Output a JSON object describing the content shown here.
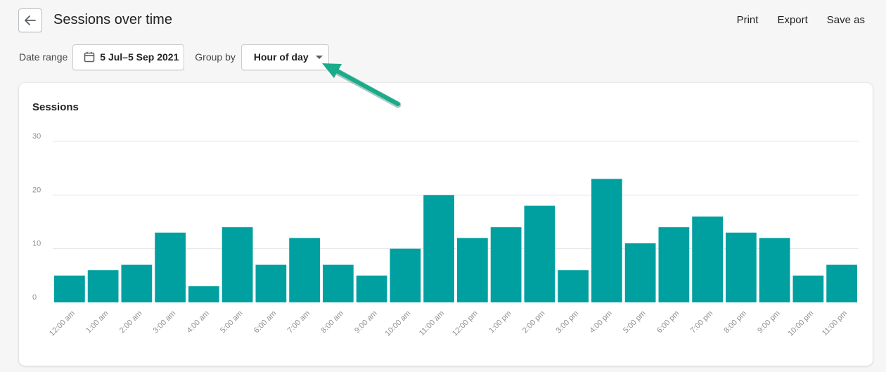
{
  "header": {
    "title": "Sessions over time",
    "actions": {
      "print": "Print",
      "export": "Export",
      "save_as": "Save as"
    }
  },
  "filters": {
    "date_range_label": "Date range",
    "date_range_value": "5 Jul–5 Sep 2021",
    "group_by_label": "Group by",
    "group_by_value": "Hour of day"
  },
  "colors": {
    "bar": "#00a0a0",
    "arrow": "#1aab8b",
    "grid": "#e4e5e7"
  },
  "chart_data": {
    "type": "bar",
    "title": "Sessions",
    "categories": [
      "12:00 am",
      "1:00 am",
      "2:00 am",
      "3:00 am",
      "4:00 am",
      "5:00 am",
      "6:00 am",
      "7:00 am",
      "8:00 am",
      "9:00 am",
      "10:00 am",
      "11:00 am",
      "12:00 pm",
      "1:00 pm",
      "2:00 pm",
      "3:00 pm",
      "4:00 pm",
      "5:00 pm",
      "6:00 pm",
      "7:00 pm",
      "8:00 pm",
      "9:00 pm",
      "10:00 pm",
      "11:00 pm"
    ],
    "values": [
      5,
      6,
      7,
      13,
      3,
      14,
      7,
      12,
      7,
      5,
      10,
      20,
      12,
      14,
      18,
      6,
      23,
      11,
      14,
      16,
      13,
      12,
      5,
      7
    ],
    "yticks": [
      "0",
      "10",
      "20",
      "30"
    ],
    "ylim": [
      0,
      30
    ],
    "grid": true
  }
}
